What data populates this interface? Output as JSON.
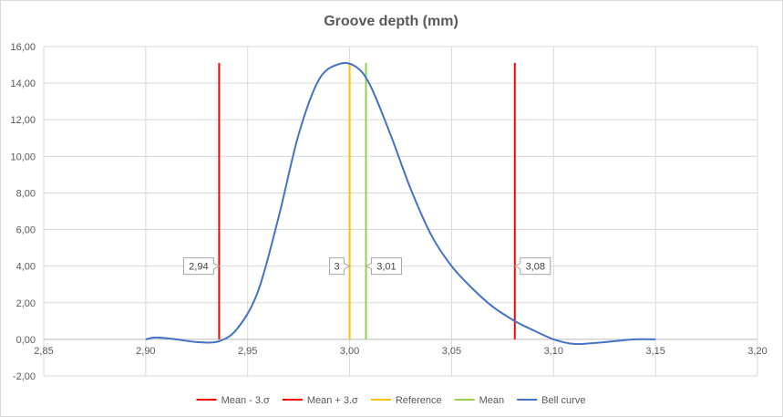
{
  "chart_data": {
    "type": "line",
    "title": "Groove depth (mm)",
    "xlim": [
      2.85,
      3.2
    ],
    "ylim": [
      -2,
      16
    ],
    "x_ticks": [
      "2,85",
      "2,90",
      "2,95",
      "3,00",
      "3,05",
      "3,10",
      "3,15",
      "3,20"
    ],
    "y_ticks": [
      "-2,00",
      "0,00",
      "2,00",
      "4,00",
      "6,00",
      "8,00",
      "10,00",
      "12,00",
      "14,00",
      "16,00"
    ],
    "grid": "vertical and horizontal major gridlines",
    "legend_position": "bottom",
    "series": [
      {
        "name": "Mean - 3.σ",
        "color": "#ff0000",
        "x": [
          2.936,
          2.936
        ],
        "y": [
          0,
          15.1
        ],
        "label": "2,94"
      },
      {
        "name": "Mean + 3.σ",
        "color": "#ff0000",
        "x": [
          3.081,
          3.081
        ],
        "y": [
          0,
          15.1
        ],
        "label": "3,08"
      },
      {
        "name": "Reference",
        "color": "#ffc000",
        "x": [
          3.0,
          3.0
        ],
        "y": [
          0,
          15.1
        ],
        "label": "3"
      },
      {
        "name": "Mean",
        "color": "#92d050",
        "x": [
          3.008,
          3.008
        ],
        "y": [
          0,
          15.1
        ],
        "label": "3,01"
      },
      {
        "name": "Bell curve",
        "color": "#4472c4",
        "x": [
          2.9,
          2.905,
          2.915,
          2.925,
          2.936,
          2.945,
          2.955,
          2.965,
          2.975,
          2.985,
          2.995,
          3.003,
          3.01,
          3.02,
          3.03,
          3.04,
          3.05,
          3.06,
          3.07,
          3.081,
          3.09,
          3.1,
          3.11,
          3.12,
          3.13,
          3.14,
          3.15
        ],
        "y": [
          0.0,
          0.1,
          0.0,
          -0.15,
          -0.1,
          0.6,
          2.6,
          6.6,
          11.2,
          14.2,
          15.05,
          14.9,
          13.9,
          11.2,
          8.2,
          5.7,
          4.0,
          2.8,
          1.8,
          1.0,
          0.5,
          0.0,
          -0.25,
          -0.2,
          -0.1,
          0.0,
          0.0
        ]
      }
    ]
  }
}
